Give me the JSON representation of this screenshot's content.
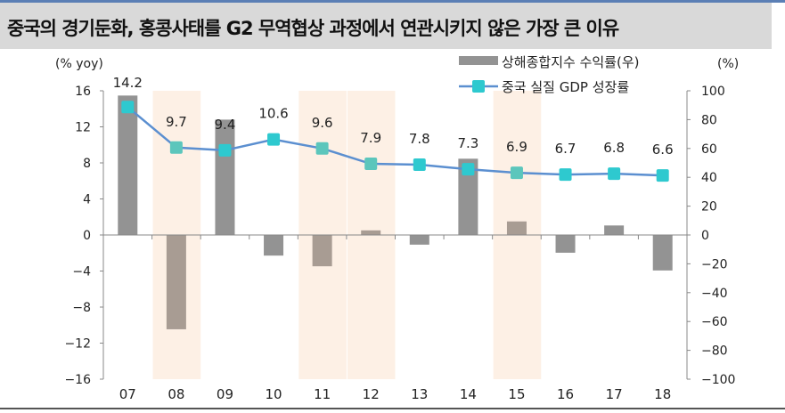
{
  "title": "중국의 경기둔화, 홍콩사태를 G2 무역협상 과정에서 연관시키지 않은 가장 큰 이유",
  "chart_data": {
    "type": "bar+line",
    "categories": [
      "07",
      "08",
      "09",
      "10",
      "11",
      "12",
      "13",
      "14",
      "15",
      "16",
      "17",
      "18"
    ],
    "highlighted_categories": [
      "08",
      "11",
      "12",
      "15"
    ],
    "left_axis": {
      "label": "(% yoy)",
      "range": [
        -16,
        16
      ],
      "ticks": [
        16,
        12,
        8,
        4,
        0,
        -4,
        -8,
        -12,
        -16
      ]
    },
    "right_axis": {
      "label": "(%)",
      "range": [
        -100,
        100
      ],
      "ticks": [
        100,
        80,
        60,
        40,
        20,
        0,
        -20,
        -40,
        -60,
        -80,
        -100
      ]
    },
    "series": [
      {
        "name": "상해종합지수 수익률(우)",
        "type": "bar",
        "axis": "right",
        "values": [
          96.7,
          -65.4,
          80.0,
          -14.3,
          -21.7,
          3.2,
          -6.7,
          52.9,
          9.4,
          -12.3,
          6.6,
          -24.6
        ]
      },
      {
        "name": "중국 실질 GDP 성장률",
        "type": "line",
        "axis": "left",
        "values": [
          14.2,
          9.7,
          9.4,
          10.6,
          9.6,
          7.9,
          7.8,
          7.3,
          6.9,
          6.7,
          6.8,
          6.6
        ],
        "labels": [
          "14.2",
          "9.7",
          "9.4",
          "10.6",
          "9.6",
          "7.9",
          "7.8",
          "7.3",
          "6.9",
          "6.7",
          "6.8",
          "6.6"
        ]
      }
    ],
    "colors": {
      "bar": "#939393",
      "bar_highlight": "#a89c93",
      "line": "#5b8fd0",
      "marker": "#2ec9cf",
      "marker_highlight": "#5cc6bc",
      "highlight_band": "#fdf0e5"
    },
    "legend_placement": "top-right",
    "grid": false
  }
}
